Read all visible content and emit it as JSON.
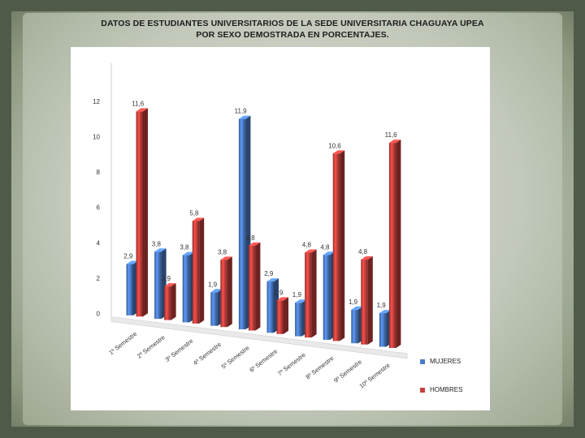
{
  "title_line1": "DATOS DE ESTUDIANTES UNIVERSITARIOS DE LA SEDE UNIVERSITARIA CHAGUAYA UPEA",
  "title_line2": "POR SEXO DEMOSTRADA EN PORCENTAJES.",
  "chart_data": {
    "type": "bar",
    "title": "DATOS DE ESTUDIANTES UNIVERSITARIOS DE LA SEDE UNIVERSITARIA CHAGUAYA UPEA POR SEXO DEMOSTRADA EN PORCENTAJES.",
    "categories": [
      "1º Semestre",
      "2º Semestre",
      "3º Semestre",
      "4º Semestre",
      "5º Semestre",
      "6º Semestre",
      "7º Semestre",
      "8º Semestre",
      "9º Semestre",
      "10º Semestre"
    ],
    "series": [
      {
        "name": "MUJERES",
        "color": "#4a7bc8",
        "values": [
          2.9,
          3.8,
          3.8,
          1.9,
          11.9,
          2.9,
          1.9,
          4.8,
          1.9,
          1.9
        ],
        "labels": [
          "2,9",
          "3,8",
          "3,8",
          "1,9",
          "11,9",
          "2,9",
          "1,9",
          "4,8",
          "1,9",
          "1,9"
        ]
      },
      {
        "name": "HOMBRES",
        "color": "#c8403c",
        "values": [
          11.6,
          1.9,
          5.8,
          3.8,
          4.8,
          1.9,
          4.8,
          10.6,
          4.8,
          11.6
        ],
        "labels": [
          "11,6",
          "1,9",
          "5,8",
          "3,8",
          "4,8",
          "1,9",
          "4,8",
          "10,6",
          "4,8",
          "11,6"
        ]
      }
    ],
    "xlabel": "",
    "ylabel": "",
    "ylim": [
      0,
      12
    ],
    "yticks": [
      "0",
      "2",
      "4",
      "6",
      "8",
      "10",
      "12"
    ],
    "grid": false,
    "legend": "right",
    "chart_style": "3d-cylinder"
  }
}
